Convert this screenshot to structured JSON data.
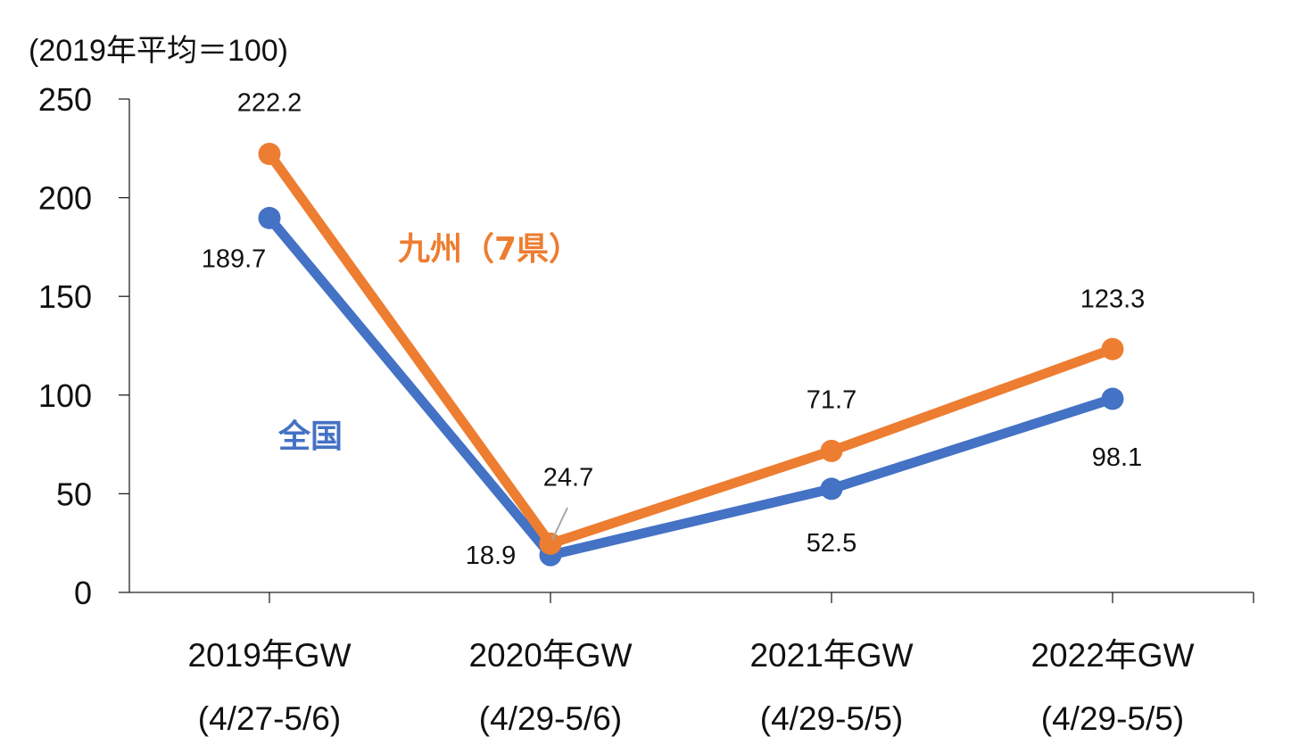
{
  "chart_data": {
    "type": "line",
    "unit_label": "(2019年平均＝100)",
    "categories": [
      {
        "year": "2019年GW",
        "period": "(4/27-5/6)"
      },
      {
        "year": "2020年GW",
        "period": "(4/29-5/6)"
      },
      {
        "year": "2021年GW",
        "period": "(4/29-5/5)"
      },
      {
        "year": "2022年GW",
        "period": "(4/29-5/5)"
      }
    ],
    "ylim": [
      0,
      250
    ],
    "yticks": [
      0,
      50,
      100,
      150,
      200,
      250
    ],
    "series": [
      {
        "name": "全国",
        "color": "#4472C4",
        "values": [
          189.7,
          18.9,
          52.5,
          98.1
        ],
        "labels": [
          "189.7",
          "18.9",
          "52.5",
          "98.1"
        ]
      },
      {
        "name": "九州（7県）",
        "color": "#ED7D31",
        "values": [
          222.2,
          24.7,
          71.7,
          123.3
        ],
        "labels": [
          "222.2",
          "24.7",
          "71.7",
          "123.3"
        ]
      }
    ]
  }
}
